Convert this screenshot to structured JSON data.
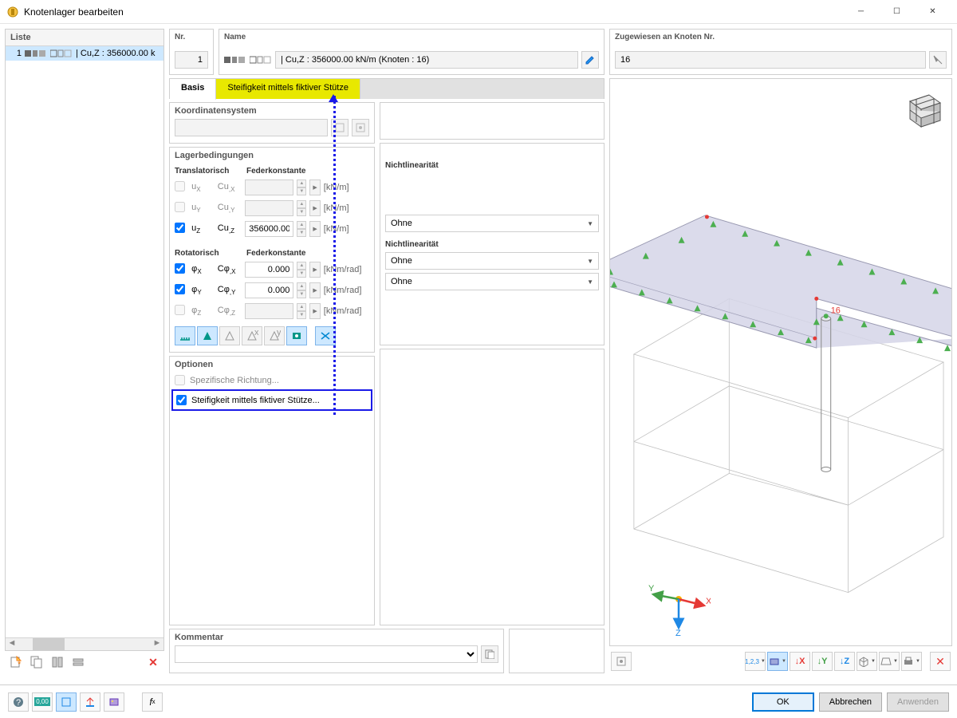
{
  "window": {
    "title": "Knotenlager bearbeiten"
  },
  "list": {
    "header": "Liste",
    "item_no": "1",
    "item_text": "| Cu,Z : 356000.00 k"
  },
  "nr": {
    "label": "Nr.",
    "value": "1"
  },
  "name": {
    "label": "Name",
    "value": "| Cu,Z : 356000.00 kN/m (Knoten : 16)"
  },
  "assigned": {
    "label": "Zugewiesen an Knoten Nr.",
    "value": "16"
  },
  "tabs": {
    "basis": "Basis",
    "stiffness": "Steifigkeit mittels fiktiver Stütze"
  },
  "coord": {
    "title": "Koordinatensystem"
  },
  "support": {
    "title": "Lagerbedingungen",
    "col_trans": "Translatorisch",
    "col_const": "Federkonstante",
    "col_nonlin": "Nichtlinearität",
    "col_rot": "Rotatorisch",
    "unit_trans": "[kN/m]",
    "unit_rot": "[kNm/rad]",
    "rows_trans": [
      {
        "chk": false,
        "lbl": "uX",
        "const": "Cu,X",
        "val": "",
        "nonlin": ""
      },
      {
        "chk": false,
        "lbl": "uY",
        "const": "Cu,Y",
        "val": "",
        "nonlin": ""
      },
      {
        "chk": true,
        "lbl": "uZ",
        "const": "Cu,Z",
        "val": "356000.00",
        "nonlin": "Ohne"
      }
    ],
    "rows_rot": [
      {
        "chk": true,
        "lbl": "φX",
        "const": "Cφ,X",
        "val": "0.000",
        "nonlin": "Ohne"
      },
      {
        "chk": true,
        "lbl": "φY",
        "const": "Cφ,Y",
        "val": "0.000",
        "nonlin": "Ohne"
      },
      {
        "chk": false,
        "lbl": "φZ",
        "const": "Cφ,Z",
        "val": "",
        "nonlin": ""
      }
    ]
  },
  "options": {
    "title": "Optionen",
    "opt1": "Spezifische Richtung...",
    "opt2": "Steifigkeit mittels fiktiver Stütze..."
  },
  "comment": {
    "title": "Kommentar"
  },
  "buttons": {
    "ok": "OK",
    "cancel": "Abbrechen",
    "apply": "Anwenden"
  },
  "view": {
    "node_label": "16",
    "axis_x": "X",
    "axis_y": "Y",
    "axis_z": "Z"
  },
  "colors": {
    "highlight_tab": "#e8e800",
    "highlight_box": "#1a1ae8",
    "slab_fill": "#d5d5e8",
    "slab_stroke": "#9898b0",
    "wire": "#c0c0c0",
    "support_green": "#4caf50",
    "node_red": "#e53935",
    "axis_x": "#e53935",
    "axis_y": "#43a047",
    "axis_z": "#1e88e5"
  }
}
